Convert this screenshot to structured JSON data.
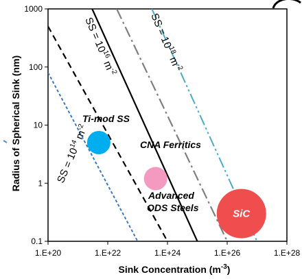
{
  "chart_data": {
    "type": "line",
    "xlabel": "Sink Concentration (m",
    "xlabel_superscript": "-3",
    "xlabel_suffix": ")",
    "ylabel": "Radius of Spherical Sink (nm)",
    "x_scale": "log",
    "y_scale": "log",
    "xlim": [
      1e+20,
      1e+28
    ],
    "ylim": [
      0.1,
      1000
    ],
    "x_ticks": [
      1e+20,
      1e+22,
      1e+24,
      1e+26,
      1e+28
    ],
    "x_tick_labels": [
      "1.E+20",
      "1.E+22",
      "1.E+24",
      "1.E+26",
      "1.E+28"
    ],
    "y_ticks": [
      0.1,
      1,
      10,
      100,
      1000
    ],
    "y_tick_labels": [
      "0.1",
      "1",
      "10",
      "100",
      "1000"
    ],
    "grid": false,
    "series": [
      {
        "name": "",
        "color": "#3b78c4",
        "dash": "short-dash",
        "points": [
          {
            "x": 1e+20,
            "y": 80
          },
          {
            "x": 1e+23,
            "y": 0.1
          }
        ]
      },
      {
        "name": "",
        "color": "#000000",
        "dash": "dash",
        "points": [
          {
            "x": 1e+20,
            "y": 500
          },
          {
            "x": 1e+24,
            "y": 0.1
          }
        ]
      },
      {
        "name": "",
        "color": "#000000",
        "dash": "solid",
        "points": [
          {
            "x": 3e+21,
            "y": 1000
          },
          {
            "x": 1e+25,
            "y": 0.1
          }
        ]
      },
      {
        "name": "",
        "color": "#7f7f7f",
        "dash": "dash-dot",
        "points": [
          {
            "x": 2e+22,
            "y": 1000
          },
          {
            "x": 1e+26,
            "y": 0.1
          }
        ]
      },
      {
        "name": "",
        "color": "#4bacc6",
        "dash": "dash-dot-dot",
        "points": [
          {
            "x": 3e+23,
            "y": 1000
          },
          {
            "x": 1e+27,
            "y": 0.1
          }
        ]
      }
    ],
    "line_labels": [
      {
        "text_prefix": "SS = 10",
        "exponent": "14",
        "unit": " m",
        "unit_exp": "-2"
      },
      {
        "text_prefix": "SS = 10",
        "exponent": "16",
        "unit": " m",
        "unit_exp": "-2"
      },
      {
        "text_prefix": "SS = 10",
        "exponent": "18",
        "unit": " m",
        "unit_exp": "-2"
      }
    ],
    "bubbles": [
      {
        "label": "Ti-mod SS",
        "x": 5e+21,
        "y": 5,
        "color": "#00aeef"
      },
      {
        "label": "Advanced ODS Steels",
        "label_lines": [
          "Advanced",
          "ODS Steels"
        ],
        "x": 4e+23,
        "y": 1.2,
        "color": "#f49ac1"
      },
      {
        "label": "SiC",
        "x": 3e+26,
        "y": 0.3,
        "color": "#f04e4e"
      }
    ],
    "annotations": [
      {
        "text": "CNA Ferritics",
        "x": 2e+24,
        "y": 5
      }
    ]
  }
}
